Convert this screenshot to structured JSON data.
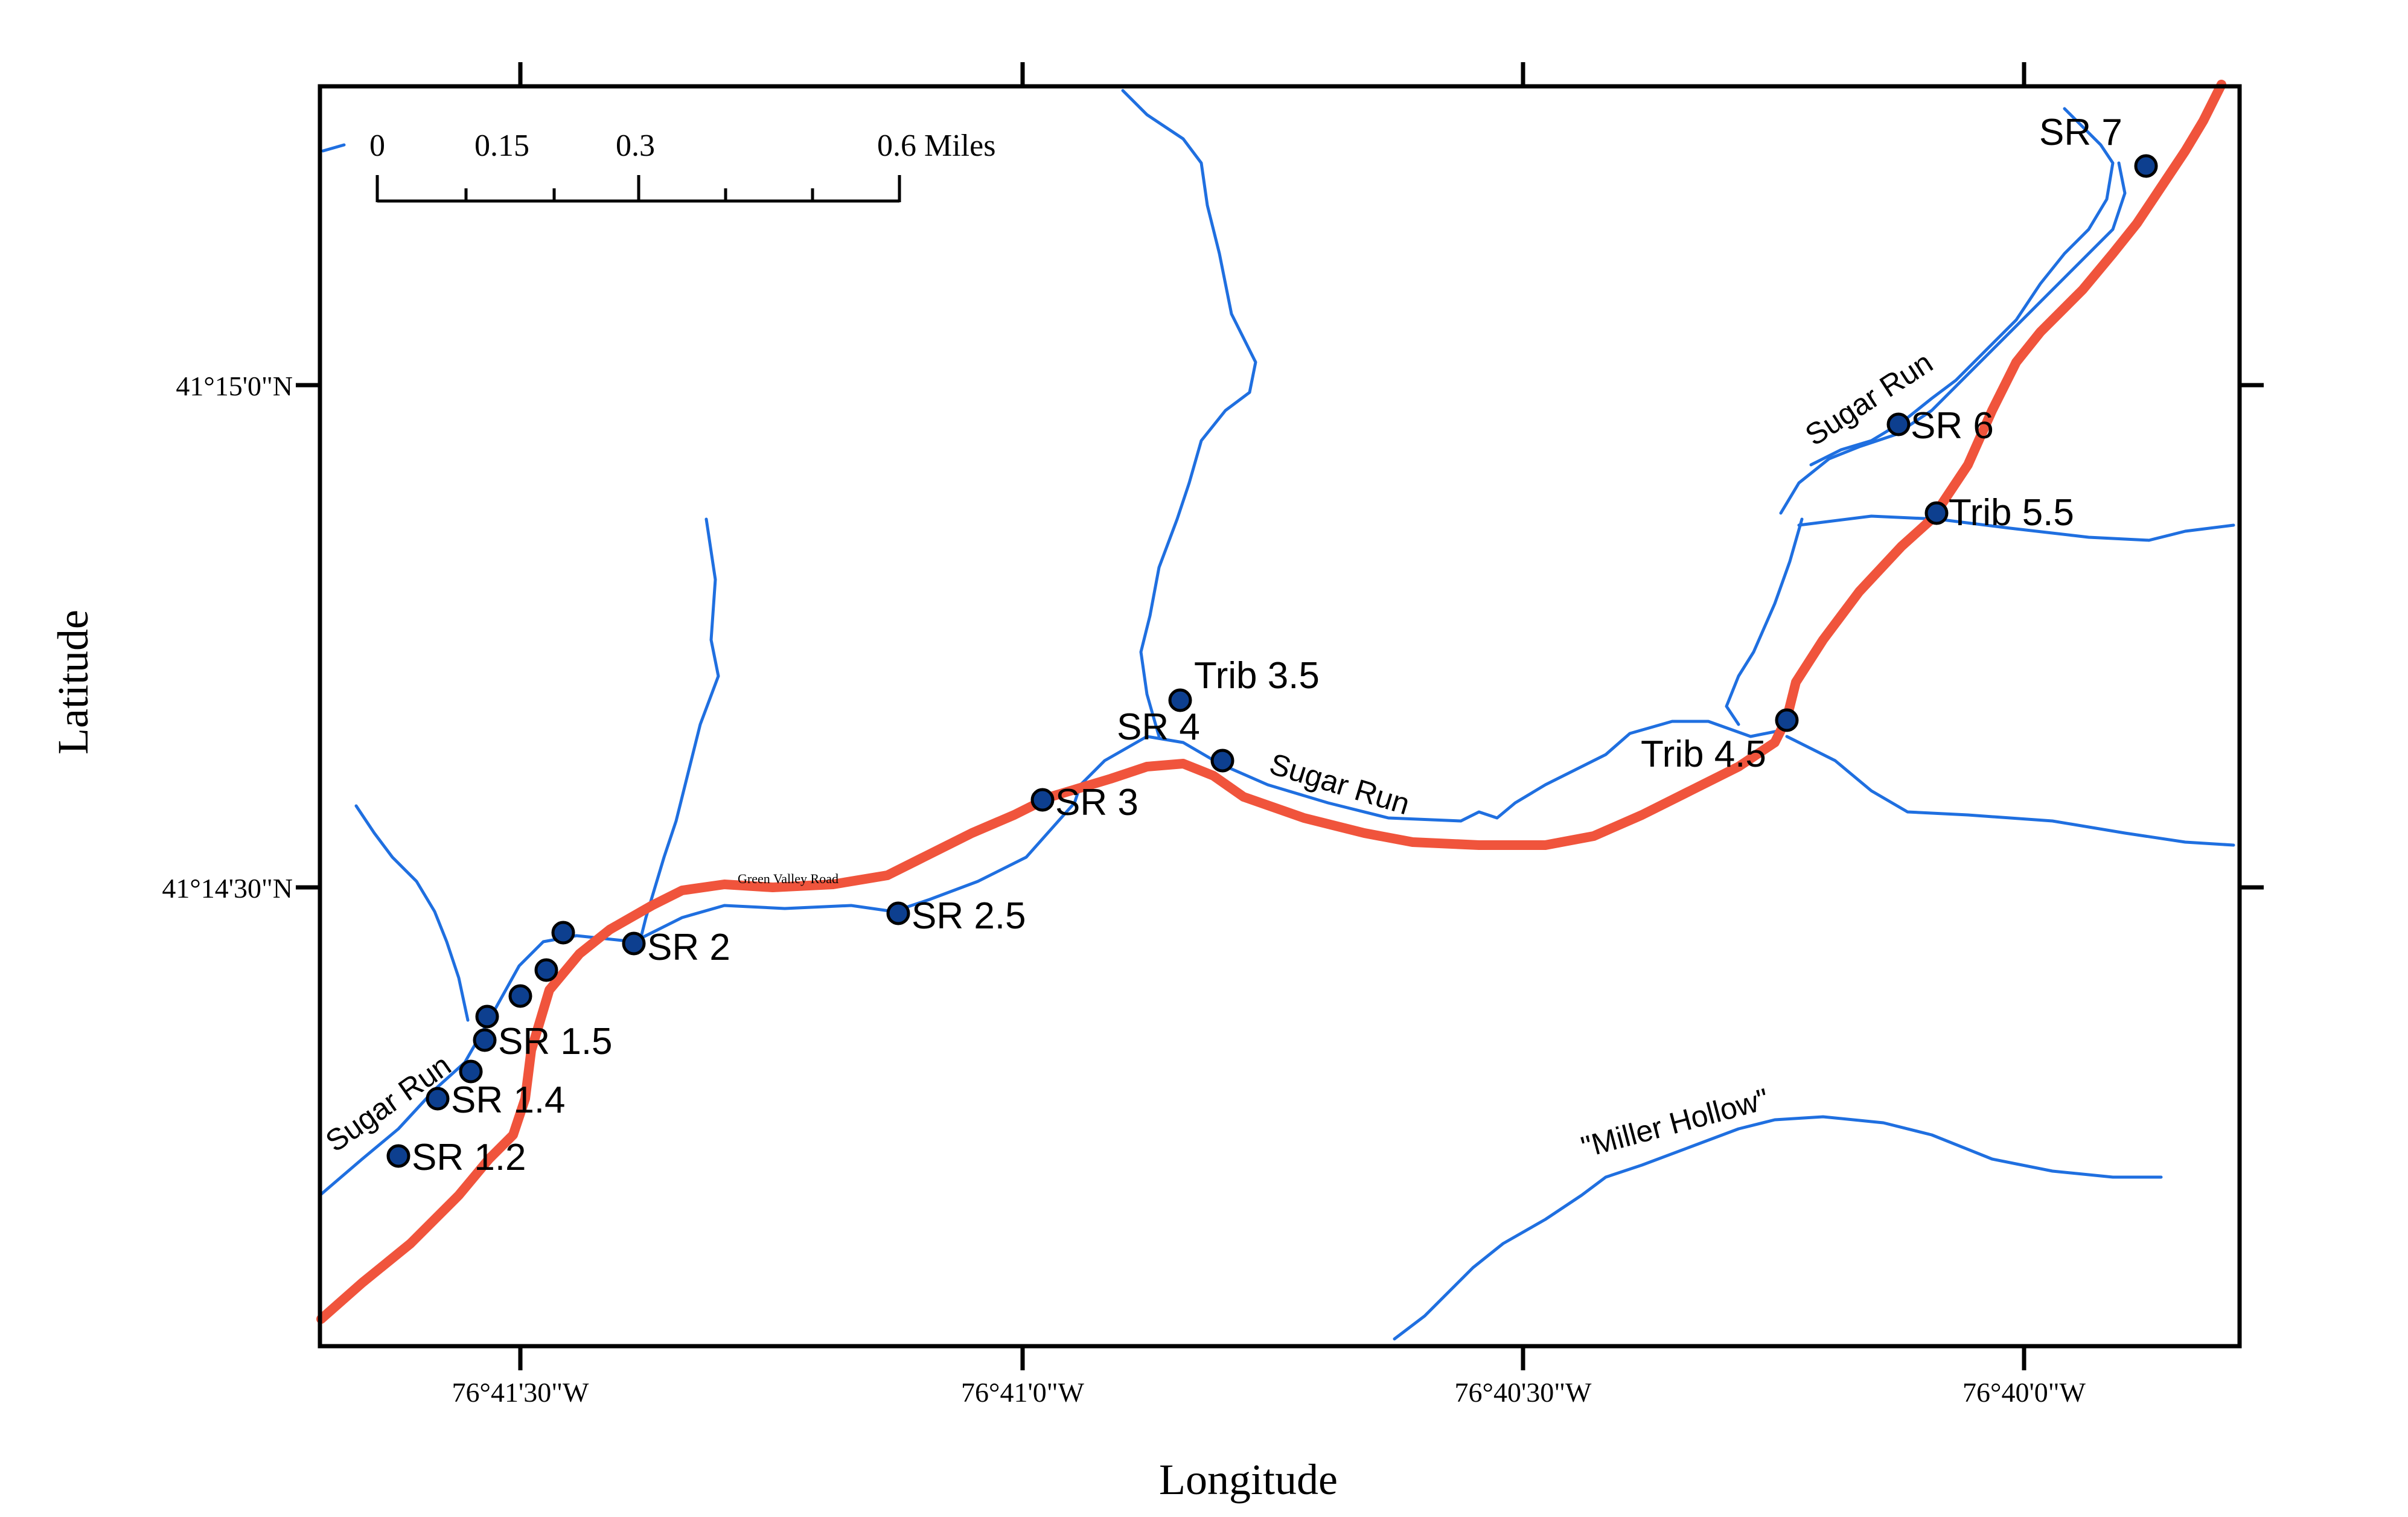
{
  "axis": {
    "xlabel": "Longitude",
    "ylabel": "Latitude",
    "x_ticks": [
      "76°41'30\"W",
      "76°41'0\"W",
      "76°40'30\"W",
      "76°40'0\"W"
    ],
    "y_ticks": [
      "41°15'0\"N",
      "41°14'30\"N"
    ]
  },
  "scale_bar": {
    "labels": [
      "0",
      "0.15",
      "0.3",
      "0.6 Miles"
    ]
  },
  "road": {
    "label": "Green Valley Road",
    "color": "#f0543c"
  },
  "streams": {
    "color": "#1f6fe0",
    "labels": {
      "sugar_run_west": "Sugar Run",
      "sugar_run_mid": "Sugar Run",
      "sugar_run_ne": "Sugar Run",
      "miller_hollow": "\"Miller Hollow\""
    }
  },
  "sites": {
    "marker_color": "#0d3f8f",
    "labels": {
      "sr_1_2": "SR 1.2",
      "sr_1_4": "SR 1.4",
      "sr_1_5": "SR 1.5",
      "sr_2": "SR 2",
      "sr_2_5": "SR 2.5",
      "sr_3": "SR 3",
      "sr_4": "SR 4",
      "trib_3_5": "Trib 3.5",
      "trib_4_5": "Trib 4.5",
      "trib_5_5": "Trib 5.5",
      "sr_6": "SR 6",
      "sr_7": "SR 7"
    }
  }
}
